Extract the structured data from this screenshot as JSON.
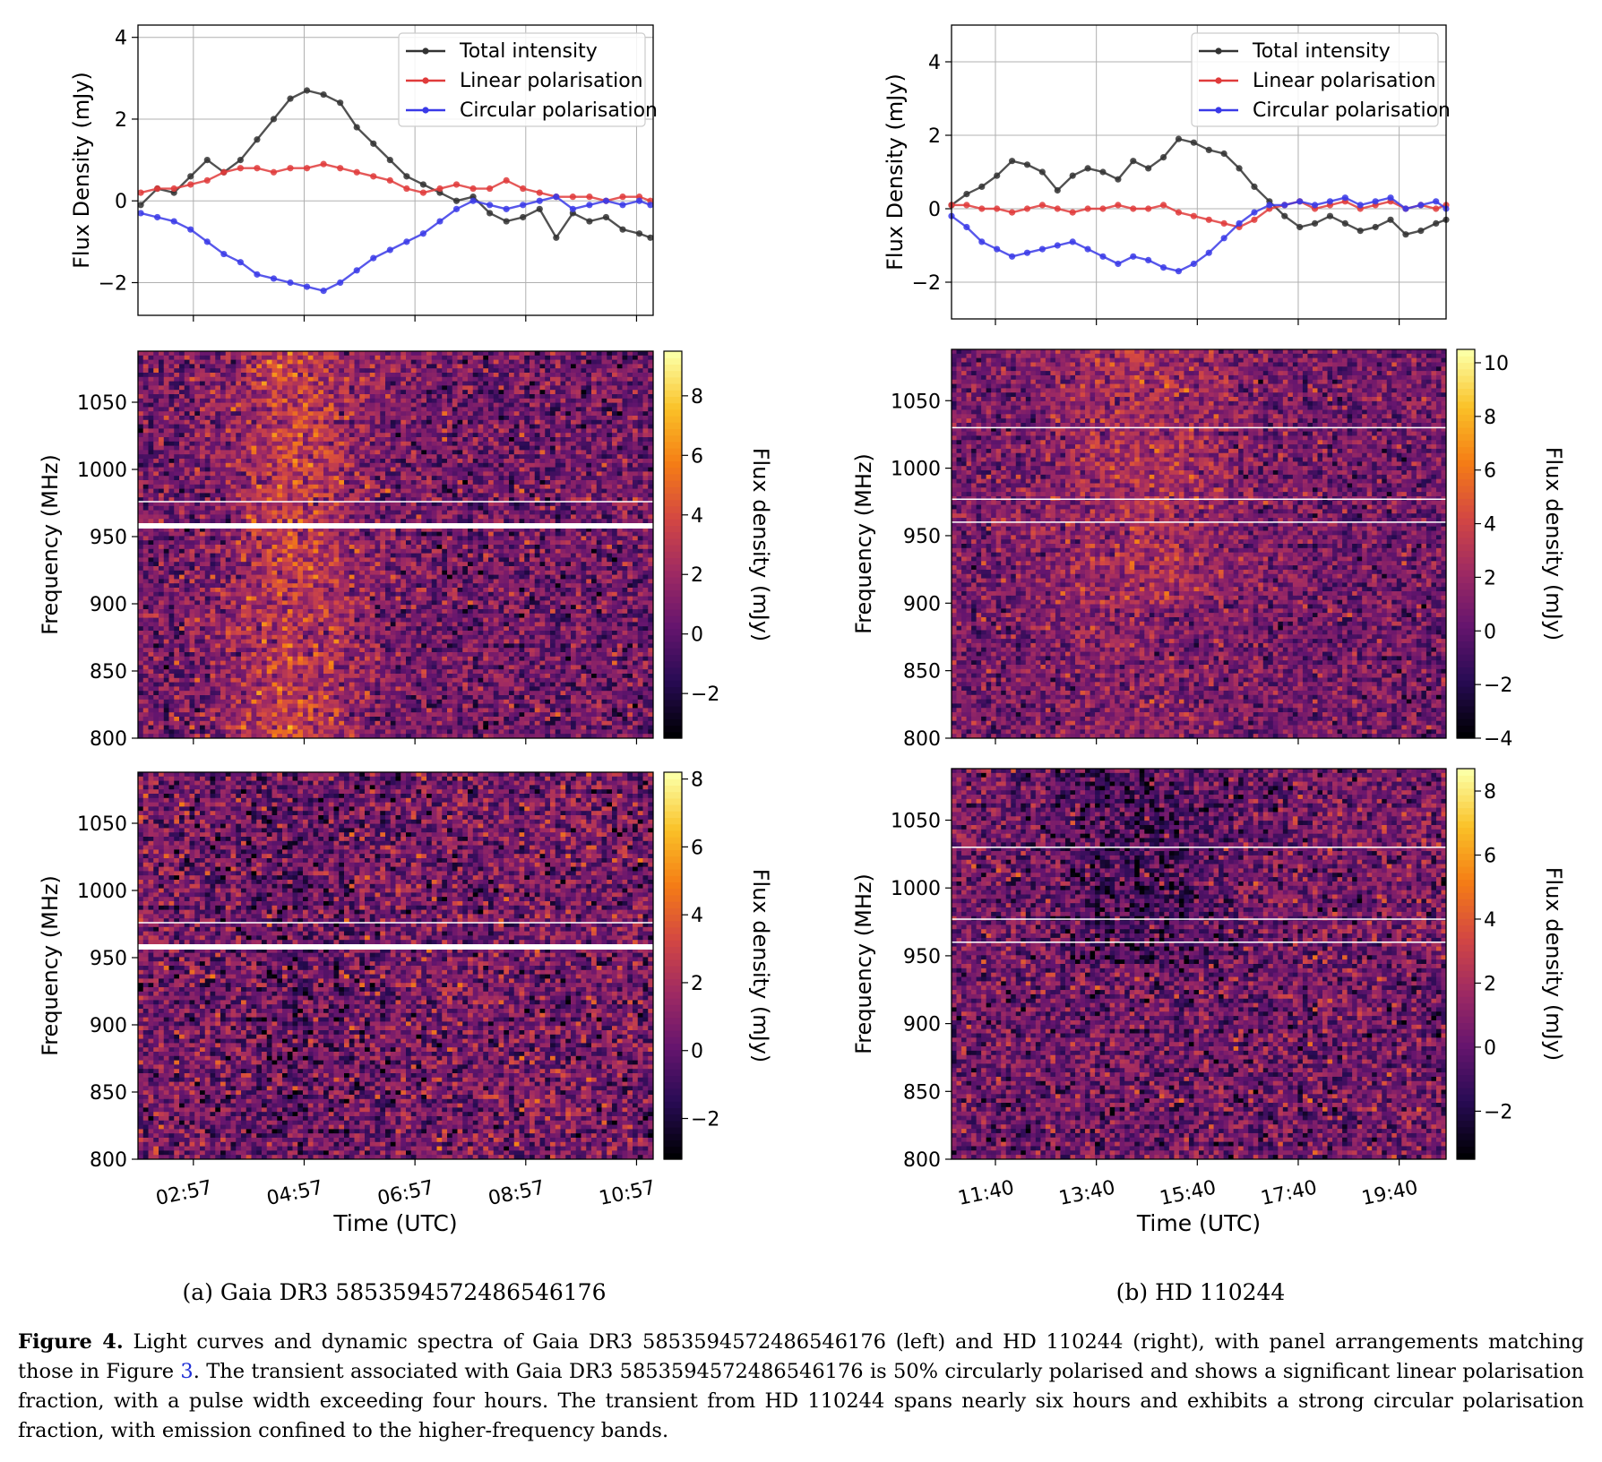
{
  "chart_data": [
    {
      "type": "line",
      "panel": "a-top",
      "ylabel": "Flux Density (mJy)",
      "ylim": [
        -2.8,
        4.3
      ],
      "yticks": [
        -2,
        0,
        2,
        4
      ],
      "xlim": [
        2.0,
        11.3
      ],
      "grid": true,
      "legend_position": "top-right",
      "legend": [
        "Total intensity",
        "Linear polarisation",
        "Circular polarisation"
      ],
      "series": [
        {
          "name": "Total intensity",
          "color": "#333333",
          "x": [
            2.05,
            2.35,
            2.65,
            2.95,
            3.25,
            3.55,
            3.85,
            4.15,
            4.45,
            4.75,
            5.05,
            5.35,
            5.65,
            5.95,
            6.25,
            6.55,
            6.85,
            7.15,
            7.45,
            7.75,
            8.05,
            8.35,
            8.65,
            8.95,
            9.25,
            9.55,
            9.85,
            10.15,
            10.45,
            10.75,
            11.05,
            11.25
          ],
          "y": [
            -0.1,
            0.3,
            0.2,
            0.6,
            1.0,
            0.7,
            1.0,
            1.5,
            2.0,
            2.5,
            2.7,
            2.6,
            2.4,
            1.8,
            1.4,
            1.0,
            0.6,
            0.4,
            0.2,
            0.0,
            0.1,
            -0.3,
            -0.5,
            -0.4,
            -0.2,
            -0.9,
            -0.3,
            -0.5,
            -0.4,
            -0.7,
            -0.8,
            -0.9
          ]
        },
        {
          "name": "Linear polarisation",
          "color": "#e03b3b",
          "x": [
            2.05,
            2.35,
            2.65,
            2.95,
            3.25,
            3.55,
            3.85,
            4.15,
            4.45,
            4.75,
            5.05,
            5.35,
            5.65,
            5.95,
            6.25,
            6.55,
            6.85,
            7.15,
            7.45,
            7.75,
            8.05,
            8.35,
            8.65,
            8.95,
            9.25,
            9.55,
            9.85,
            10.15,
            10.45,
            10.75,
            11.05,
            11.25
          ],
          "y": [
            0.2,
            0.3,
            0.3,
            0.4,
            0.5,
            0.7,
            0.8,
            0.8,
            0.7,
            0.8,
            0.8,
            0.9,
            0.8,
            0.7,
            0.6,
            0.5,
            0.3,
            0.2,
            0.3,
            0.4,
            0.3,
            0.3,
            0.5,
            0.3,
            0.2,
            0.1,
            0.1,
            0.1,
            0.0,
            0.1,
            0.1,
            0.0
          ]
        },
        {
          "name": "Circular polarisation",
          "color": "#3a3ae8",
          "x": [
            2.05,
            2.35,
            2.65,
            2.95,
            3.25,
            3.55,
            3.85,
            4.15,
            4.45,
            4.75,
            5.05,
            5.35,
            5.65,
            5.95,
            6.25,
            6.55,
            6.85,
            7.15,
            7.45,
            7.75,
            8.05,
            8.35,
            8.65,
            8.95,
            9.25,
            9.55,
            9.85,
            10.15,
            10.45,
            10.75,
            11.05,
            11.25
          ],
          "y": [
            -0.3,
            -0.4,
            -0.5,
            -0.7,
            -1.0,
            -1.3,
            -1.5,
            -1.8,
            -1.9,
            -2.0,
            -2.1,
            -2.2,
            -2.0,
            -1.7,
            -1.4,
            -1.2,
            -1.0,
            -0.8,
            -0.5,
            -0.2,
            0.0,
            -0.1,
            -0.2,
            -0.1,
            0.0,
            0.1,
            -0.2,
            -0.1,
            0.0,
            -0.1,
            0.0,
            -0.1
          ]
        }
      ]
    },
    {
      "type": "heatmap",
      "panel": "a-middle",
      "ylabel": "Frequency (MHz)",
      "yticks": [
        800,
        850,
        900,
        950,
        1000,
        1050
      ],
      "ylim": [
        800,
        1088
      ],
      "colorbar_label": "Flux density (mJy)",
      "colorbar_ticks": [
        -2,
        0,
        2,
        4,
        6,
        8
      ],
      "colorbar_range": [
        -3.5,
        9.5
      ],
      "colormap": "inferno"
    },
    {
      "type": "heatmap",
      "panel": "a-bottom",
      "ylabel": "Frequency (MHz)",
      "yticks": [
        800,
        850,
        900,
        950,
        1000,
        1050
      ],
      "ylim": [
        800,
        1088
      ],
      "xlabel": "Time (UTC)",
      "xticks": [
        "02:57",
        "04:57",
        "06:57",
        "08:57",
        "10:57"
      ],
      "colorbar_label": "Flux density (mJy)",
      "colorbar_ticks": [
        -2,
        0,
        2,
        4,
        6,
        8
      ],
      "colorbar_range": [
        -3.2,
        8.2
      ],
      "colormap": "inferno"
    },
    {
      "type": "line",
      "panel": "b-top",
      "ylabel": "Flux Density (mJy)",
      "ylim": [
        -3.0,
        5.0
      ],
      "yticks": [
        -2,
        0,
        2,
        4
      ],
      "xlim": [
        10.8,
        20.6
      ],
      "grid": true,
      "legend_position": "top-right",
      "legend": [
        "Total intensity",
        "Linear polarisation",
        "Circular polarisation"
      ],
      "series": [
        {
          "name": "Total intensity",
          "color": "#333333",
          "x": [
            10.8,
            11.1,
            11.4,
            11.7,
            12.0,
            12.3,
            12.6,
            12.9,
            13.2,
            13.5,
            13.8,
            14.1,
            14.4,
            14.7,
            15.0,
            15.3,
            15.6,
            15.9,
            16.2,
            16.5,
            16.8,
            17.1,
            17.4,
            17.7,
            18.0,
            18.3,
            18.6,
            18.9,
            19.2,
            19.5,
            19.8,
            20.1,
            20.4,
            20.6
          ],
          "y": [
            0.1,
            0.4,
            0.6,
            0.9,
            1.3,
            1.2,
            1.0,
            0.5,
            0.9,
            1.1,
            1.0,
            0.8,
            1.3,
            1.1,
            1.4,
            1.9,
            1.8,
            1.6,
            1.5,
            1.1,
            0.6,
            0.2,
            -0.2,
            -0.5,
            -0.4,
            -0.2,
            -0.4,
            -0.6,
            -0.5,
            -0.3,
            -0.7,
            -0.6,
            -0.4,
            -0.3
          ]
        },
        {
          "name": "Linear polarisation",
          "color": "#e03b3b",
          "x": [
            10.8,
            11.1,
            11.4,
            11.7,
            12.0,
            12.3,
            12.6,
            12.9,
            13.2,
            13.5,
            13.8,
            14.1,
            14.4,
            14.7,
            15.0,
            15.3,
            15.6,
            15.9,
            16.2,
            16.5,
            16.8,
            17.1,
            17.4,
            17.7,
            18.0,
            18.3,
            18.6,
            18.9,
            19.2,
            19.5,
            19.8,
            20.1,
            20.4,
            20.6
          ],
          "y": [
            0.1,
            0.1,
            0.0,
            0.0,
            -0.1,
            0.0,
            0.1,
            0.0,
            -0.1,
            0.0,
            0.0,
            0.1,
            0.0,
            0.0,
            0.1,
            -0.1,
            -0.2,
            -0.3,
            -0.4,
            -0.5,
            -0.3,
            0.0,
            0.1,
            0.2,
            0.0,
            0.1,
            0.2,
            0.0,
            0.1,
            0.2,
            0.0,
            0.1,
            0.0,
            0.1
          ]
        },
        {
          "name": "Circular polarisation",
          "color": "#3a3ae8",
          "x": [
            10.8,
            11.1,
            11.4,
            11.7,
            12.0,
            12.3,
            12.6,
            12.9,
            13.2,
            13.5,
            13.8,
            14.1,
            14.4,
            14.7,
            15.0,
            15.3,
            15.6,
            15.9,
            16.2,
            16.5,
            16.8,
            17.1,
            17.4,
            17.7,
            18.0,
            18.3,
            18.6,
            18.9,
            19.2,
            19.5,
            19.8,
            20.1,
            20.4,
            20.6
          ],
          "y": [
            -0.2,
            -0.5,
            -0.9,
            -1.1,
            -1.3,
            -1.2,
            -1.1,
            -1.0,
            -0.9,
            -1.1,
            -1.3,
            -1.5,
            -1.3,
            -1.4,
            -1.6,
            -1.7,
            -1.5,
            -1.2,
            -0.8,
            -0.4,
            -0.1,
            0.1,
            0.1,
            0.2,
            0.1,
            0.2,
            0.3,
            0.1,
            0.2,
            0.3,
            0.0,
            0.1,
            0.2,
            0.0
          ]
        }
      ]
    },
    {
      "type": "heatmap",
      "panel": "b-middle",
      "ylabel": "Frequency (MHz)",
      "yticks": [
        800,
        850,
        900,
        950,
        1000,
        1050
      ],
      "ylim": [
        800,
        1088
      ],
      "colorbar_label": "Flux density (mJy)",
      "colorbar_ticks": [
        -4,
        -2,
        0,
        2,
        4,
        6,
        8,
        10
      ],
      "colorbar_range": [
        -4,
        10.5
      ],
      "colormap": "inferno"
    },
    {
      "type": "heatmap",
      "panel": "b-bottom",
      "ylabel": "Frequency (MHz)",
      "yticks": [
        800,
        850,
        900,
        950,
        1000,
        1050
      ],
      "ylim": [
        800,
        1088
      ],
      "xlabel": "Time (UTC)",
      "xticks": [
        "11:40",
        "13:40",
        "15:40",
        "17:40",
        "19:40"
      ],
      "colorbar_label": "Flux density (mJy)",
      "colorbar_ticks": [
        -2,
        0,
        2,
        4,
        6,
        8
      ],
      "colorbar_range": [
        -3.5,
        8.7
      ],
      "colormap": "inferno"
    }
  ],
  "subcaptions": {
    "a": "(a) Gaia DR3 5853594572486546176",
    "b": "(b) HD 110244"
  },
  "caption": {
    "label": "Figure 4.",
    "text_1": " Light curves and dynamic spectra of Gaia DR3 5853594572486546176 (left) and HD 110244 (right), with panel arrangements matching those in Figure ",
    "ref": "3",
    "text_2": ". The transient associated with Gaia DR3 5853594572486546176 is 50% circularly polarised and shows a significant linear polarisation fraction, with a pulse width exceeding four hours. The transient from HD 110244 spans nearly six hours and exhibits a strong circular polarisation fraction, with emission confined to the higher-frequency bands."
  }
}
